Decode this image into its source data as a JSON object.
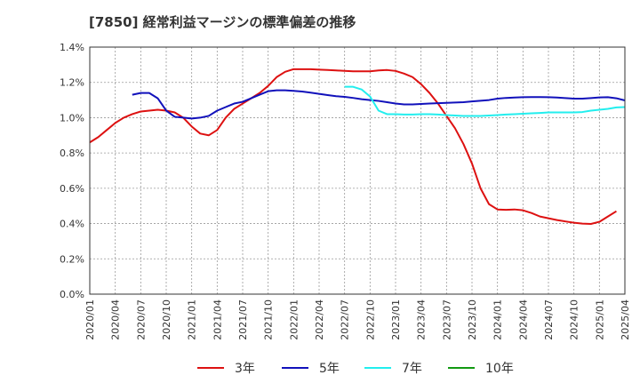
{
  "chart_data": {
    "type": "line",
    "title": "[7850]  経常利益マージンの標準偏差の推移",
    "xlabel": "",
    "ylabel": "",
    "ylim": [
      0,
      0.014
    ],
    "y_ticks": [
      0,
      0.002,
      0.004,
      0.006,
      0.008,
      0.01,
      0.012,
      0.014
    ],
    "y_tick_labels": [
      "0.0%",
      "0.2%",
      "0.4%",
      "0.6%",
      "0.8%",
      "1.0%",
      "1.2%",
      "1.4%"
    ],
    "x_range": [
      "2020-01",
      "2025-04"
    ],
    "x_tick_labels": [
      "2020/01",
      "2020/04",
      "2020/07",
      "2020/10",
      "2021/01",
      "2021/04",
      "2021/07",
      "2021/10",
      "2022/01",
      "2022/04",
      "2022/07",
      "2022/10",
      "2023/01",
      "2023/04",
      "2023/07",
      "2023/10",
      "2024/01",
      "2024/04",
      "2024/07",
      "2024/10",
      "2025/01",
      "2025/04"
    ],
    "grid": true,
    "legend_position": "bottom",
    "series": [
      {
        "name": "3年",
        "color": "#dd1111",
        "start": "2020-01",
        "values": [
          0.0086,
          0.0089,
          0.0093,
          0.0097,
          0.01,
          0.0102,
          0.01035,
          0.0104,
          0.01045,
          0.0104,
          0.0103,
          0.01,
          0.0095,
          0.0091,
          0.009,
          0.0093,
          0.01,
          0.0105,
          0.0108,
          0.0111,
          0.0114,
          0.0118,
          0.0123,
          0.0126,
          0.01275,
          0.01275,
          0.01275,
          0.01272,
          0.0127,
          0.01268,
          0.01265,
          0.01263,
          0.01263,
          0.01263,
          0.01268,
          0.0127,
          0.01265,
          0.0125,
          0.0123,
          0.0119,
          0.0114,
          0.0108,
          0.0101,
          0.0094,
          0.0085,
          0.0074,
          0.006,
          0.0051,
          0.0048,
          0.00478,
          0.0048,
          0.00475,
          0.0046,
          0.0044,
          0.0043,
          0.0042,
          0.00412,
          0.00405,
          0.004,
          0.00398,
          0.0041,
          0.0044,
          0.0047
        ]
      },
      {
        "name": "5年",
        "color": "#1111bb",
        "start": "2020-06",
        "values": [
          0.0113,
          0.0114,
          0.0114,
          0.0111,
          0.0104,
          0.01005,
          0.01,
          0.00995,
          0.01,
          0.0101,
          0.0104,
          0.0106,
          0.0108,
          0.0109,
          0.0111,
          0.0113,
          0.0115,
          0.01155,
          0.01155,
          0.01152,
          0.01148,
          0.01142,
          0.01135,
          0.01128,
          0.01122,
          0.01118,
          0.01112,
          0.01105,
          0.011,
          0.01095,
          0.01088,
          0.0108,
          0.01075,
          0.01075,
          0.01078,
          0.0108,
          0.01082,
          0.01084,
          0.01086,
          0.01088,
          0.01092,
          0.01096,
          0.011,
          0.01108,
          0.01112,
          0.01114,
          0.01116,
          0.01117,
          0.01117,
          0.01116,
          0.01114,
          0.01111,
          0.01108,
          0.01108,
          0.01111,
          0.01115,
          0.01116,
          0.0111,
          0.01098
        ]
      },
      {
        "name": "7年",
        "color": "#22eeee",
        "start": "2022-07",
        "values": [
          0.01175,
          0.01175,
          0.0116,
          0.0112,
          0.0104,
          0.0102,
          0.0102,
          0.01018,
          0.01018,
          0.0102,
          0.0102,
          0.01018,
          0.01015,
          0.01012,
          0.0101,
          0.0101,
          0.0101,
          0.01012,
          0.01015,
          0.01018,
          0.0102,
          0.01022,
          0.01025,
          0.01027,
          0.0103,
          0.0103,
          0.0103,
          0.0103,
          0.01032,
          0.0104,
          0.01045,
          0.0105,
          0.01058,
          0.0106
        ]
      },
      {
        "name": "10年",
        "color": "#119911",
        "start": "2025-01",
        "values": []
      }
    ]
  }
}
